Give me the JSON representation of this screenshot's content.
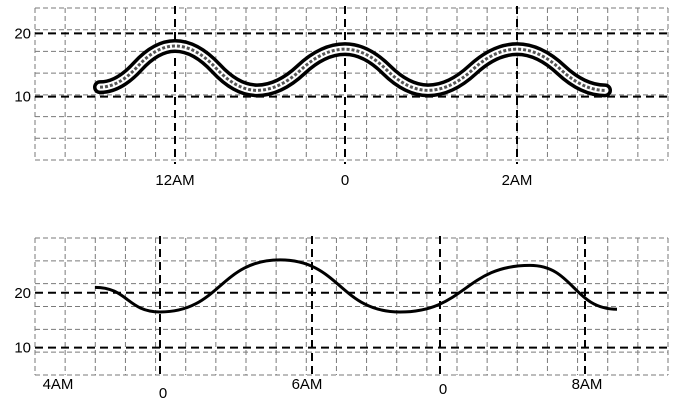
{
  "chart_data": [
    {
      "type": "line",
      "y_ticks": [
        {
          "value": 20,
          "label": "20"
        },
        {
          "value": 10,
          "label": "10"
        }
      ],
      "x_ticks": [
        "12AM",
        "0",
        "2AM"
      ],
      "ylim": [
        0,
        24
      ],
      "grid": true,
      "series": [
        {
          "style": "wide banded band",
          "color": "#000000",
          "x": [
            0,
            1,
            2,
            3,
            4,
            5,
            6
          ],
          "y": [
            11.5,
            18,
            11,
            17.5,
            11,
            17.5,
            11
          ]
        }
      ]
    },
    {
      "type": "line",
      "y_ticks": [
        {
          "value": 20,
          "label": "20"
        },
        {
          "value": 10,
          "label": "10"
        }
      ],
      "x_ticks": [
        "4AM",
        "0",
        "6AM",
        "0",
        "8AM"
      ],
      "ylim": [
        5,
        30
      ],
      "grid": true,
      "series": [
        {
          "color": "#000000",
          "x": [
            0,
            1,
            2,
            3,
            4,
            5
          ],
          "y": [
            21,
            16.5,
            26,
            16.5,
            25,
            17
          ]
        }
      ]
    }
  ]
}
